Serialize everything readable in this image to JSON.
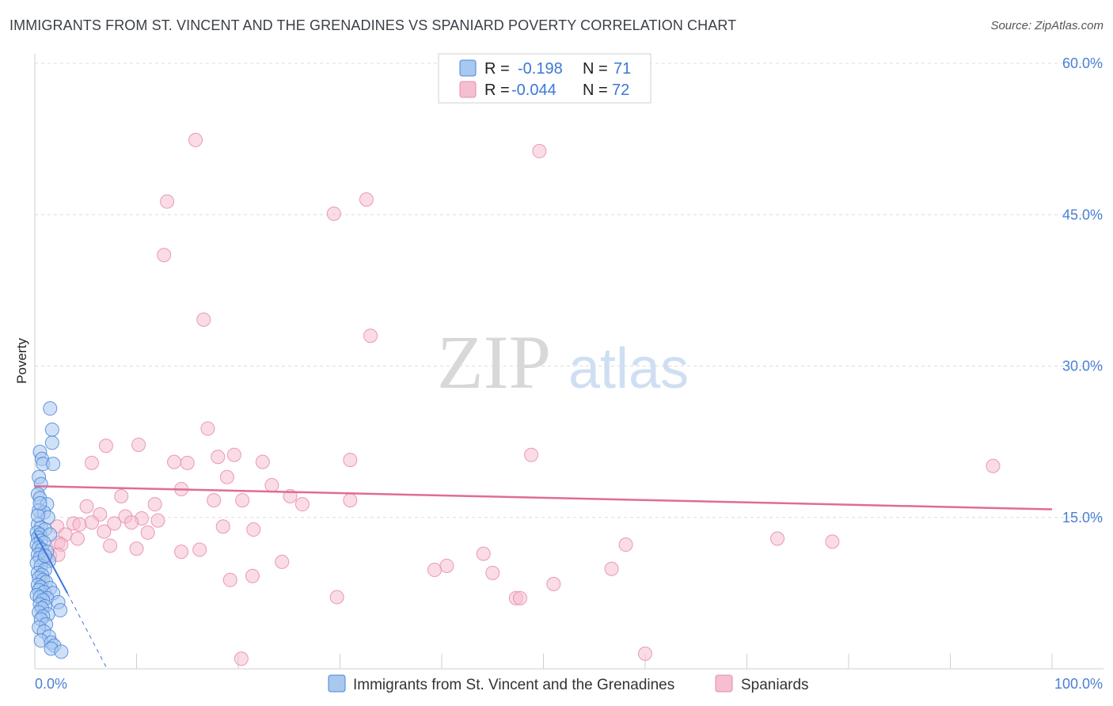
{
  "header": {
    "title": "IMMIGRANTS FROM ST. VINCENT AND THE GRENADINES VS SPANIARD POVERTY CORRELATION CHART",
    "source": "Source: ZipAtlas.com"
  },
  "watermark": {
    "zip": "ZIP",
    "atlas": "atlas"
  },
  "colors": {
    "blue_fill": "#a9c8f0",
    "blue_stroke": "#4a86d8",
    "blue_line": "#3a78d8",
    "pink_fill": "#f5bfd0",
    "pink_stroke": "#e88aaa",
    "pink_line": "#e06c96",
    "grid": "#dcdcdc",
    "tick_text": "#4a7fd4"
  },
  "legend": {
    "r_label": "R =",
    "n_label": "N =",
    "rows": [
      {
        "r": "-0.198",
        "n": "71"
      },
      {
        "r": "-0.044",
        "n": "72"
      }
    ]
  },
  "chart_data": {
    "type": "scatter",
    "title": "IMMIGRANTS FROM ST. VINCENT AND THE GRENADINES VS SPANIARD POVERTY CORRELATION CHART",
    "xlabel": "",
    "ylabel": "Poverty",
    "xlim": [
      0,
      100
    ],
    "ylim": [
      0,
      63
    ],
    "x_tick_labels": [
      "0.0%",
      "100.0%"
    ],
    "y_ticks": [
      15,
      30,
      45,
      60
    ],
    "y_tick_labels": [
      "15.0%",
      "30.0%",
      "45.0%",
      "60.0%"
    ],
    "grid": true,
    "series": [
      {
        "name": "Immigrants from St. Vincent and the Grenadines",
        "color": "#4a86d8",
        "trend": {
          "x": [
            0,
            3.2
          ],
          "y": [
            13.5,
            7.5
          ],
          "dashed_to": [
            7.0,
            0.2
          ]
        },
        "points": [
          [
            1.5,
            25.8
          ],
          [
            1.7,
            23.7
          ],
          [
            1.7,
            22.4
          ],
          [
            0.5,
            21.5
          ],
          [
            0.7,
            20.8
          ],
          [
            0.8,
            20.3
          ],
          [
            1.8,
            20.3
          ],
          [
            0.4,
            19.0
          ],
          [
            0.6,
            18.3
          ],
          [
            0.3,
            17.3
          ],
          [
            0.5,
            16.9
          ],
          [
            1.2,
            16.3
          ],
          [
            0.4,
            15.7
          ],
          [
            0.9,
            15.5
          ],
          [
            1.3,
            15.0
          ],
          [
            0.3,
            14.3
          ],
          [
            0.6,
            14.0
          ],
          [
            1.0,
            13.8
          ],
          [
            0.2,
            13.5
          ],
          [
            0.5,
            13.3
          ],
          [
            1.5,
            13.3
          ],
          [
            0.3,
            13.0
          ],
          [
            0.6,
            12.7
          ],
          [
            0.9,
            12.5
          ],
          [
            0.2,
            12.3
          ],
          [
            0.4,
            12.0
          ],
          [
            0.7,
            11.8
          ],
          [
            1.2,
            11.6
          ],
          [
            0.3,
            11.3
          ],
          [
            0.5,
            11.0
          ],
          [
            0.9,
            10.8
          ],
          [
            1.4,
            10.7
          ],
          [
            0.2,
            10.5
          ],
          [
            0.6,
            10.2
          ],
          [
            1.0,
            9.8
          ],
          [
            0.3,
            9.5
          ],
          [
            0.7,
            9.3
          ],
          [
            0.4,
            9.0
          ],
          [
            0.8,
            8.8
          ],
          [
            1.1,
            8.6
          ],
          [
            0.3,
            8.3
          ],
          [
            0.6,
            8.1
          ],
          [
            1.5,
            8.0
          ],
          [
            0.4,
            7.8
          ],
          [
            0.9,
            7.6
          ],
          [
            1.8,
            7.5
          ],
          [
            0.2,
            7.3
          ],
          [
            0.5,
            7.1
          ],
          [
            1.2,
            7.0
          ],
          [
            0.8,
            6.8
          ],
          [
            2.3,
            6.6
          ],
          [
            0.5,
            6.4
          ],
          [
            1.0,
            6.2
          ],
          [
            0.7,
            6.0
          ],
          [
            2.5,
            5.8
          ],
          [
            0.4,
            5.6
          ],
          [
            1.3,
            5.4
          ],
          [
            0.8,
            5.2
          ],
          [
            0.6,
            4.9
          ],
          [
            1.1,
            4.4
          ],
          [
            0.4,
            4.1
          ],
          [
            0.9,
            3.7
          ],
          [
            1.4,
            3.2
          ],
          [
            0.6,
            2.8
          ],
          [
            1.6,
            2.6
          ],
          [
            1.9,
            2.3
          ],
          [
            1.6,
            2.0
          ],
          [
            2.6,
            1.7
          ],
          [
            0.3,
            15.2
          ],
          [
            1.0,
            11.2
          ],
          [
            0.5,
            16.4
          ]
        ]
      },
      {
        "name": "Spaniards",
        "color": "#e88aaa",
        "trend": {
          "x": [
            0,
            100
          ],
          "y": [
            18.1,
            15.8
          ]
        },
        "points": [
          [
            15.8,
            52.4
          ],
          [
            49.6,
            51.3
          ],
          [
            13.0,
            46.3
          ],
          [
            32.6,
            46.5
          ],
          [
            29.4,
            45.1
          ],
          [
            12.7,
            41.0
          ],
          [
            16.6,
            34.6
          ],
          [
            33.0,
            33.0
          ],
          [
            17.0,
            23.8
          ],
          [
            7.0,
            22.1
          ],
          [
            10.2,
            22.2
          ],
          [
            19.6,
            21.2
          ],
          [
            48.8,
            21.2
          ],
          [
            18.0,
            21.0
          ],
          [
            5.6,
            20.4
          ],
          [
            13.7,
            20.5
          ],
          [
            15.0,
            20.4
          ],
          [
            22.4,
            20.5
          ],
          [
            31.0,
            20.7
          ],
          [
            94.2,
            20.1
          ],
          [
            18.9,
            19.0
          ],
          [
            23.3,
            18.2
          ],
          [
            14.4,
            17.8
          ],
          [
            8.5,
            17.1
          ],
          [
            25.1,
            17.1
          ],
          [
            17.6,
            16.7
          ],
          [
            20.4,
            16.7
          ],
          [
            31.0,
            16.7
          ],
          [
            5.1,
            16.1
          ],
          [
            11.8,
            16.3
          ],
          [
            26.3,
            16.3
          ],
          [
            6.4,
            15.3
          ],
          [
            8.9,
            15.1
          ],
          [
            10.5,
            14.9
          ],
          [
            12.1,
            14.7
          ],
          [
            7.8,
            14.4
          ],
          [
            9.5,
            14.5
          ],
          [
            3.8,
            14.4
          ],
          [
            4.4,
            14.3
          ],
          [
            5.6,
            14.5
          ],
          [
            18.5,
            14.1
          ],
          [
            21.5,
            13.8
          ],
          [
            2.2,
            14.1
          ],
          [
            6.8,
            13.6
          ],
          [
            11.1,
            13.5
          ],
          [
            3.0,
            13.3
          ],
          [
            2.3,
            12.5
          ],
          [
            4.2,
            12.9
          ],
          [
            73.0,
            12.9
          ],
          [
            78.4,
            12.6
          ],
          [
            2.6,
            12.3
          ],
          [
            7.4,
            12.2
          ],
          [
            58.1,
            12.3
          ],
          [
            10.0,
            11.9
          ],
          [
            14.4,
            11.6
          ],
          [
            16.2,
            11.8
          ],
          [
            44.1,
            11.4
          ],
          [
            1.5,
            11.2
          ],
          [
            2.3,
            11.3
          ],
          [
            24.3,
            10.6
          ],
          [
            40.5,
            10.2
          ],
          [
            39.3,
            9.8
          ],
          [
            45.0,
            9.5
          ],
          [
            56.7,
            9.9
          ],
          [
            21.4,
            9.2
          ],
          [
            19.2,
            8.8
          ],
          [
            51.0,
            8.4
          ],
          [
            29.7,
            7.1
          ],
          [
            47.3,
            7.0
          ],
          [
            47.7,
            7.0
          ],
          [
            60.0,
            1.5
          ],
          [
            20.3,
            1.0
          ]
        ]
      }
    ]
  }
}
